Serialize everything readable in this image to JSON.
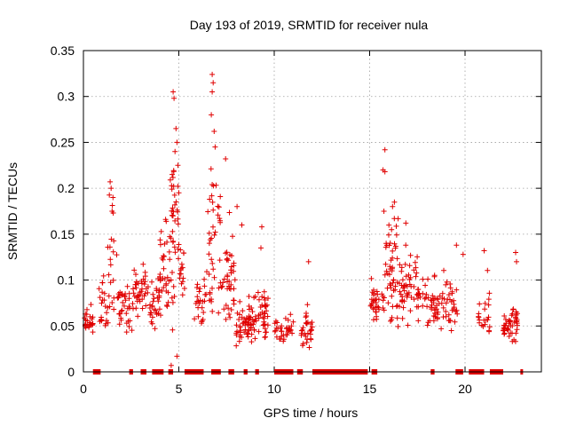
{
  "chart_data": {
    "type": "scatter",
    "title": "Day 193 of 2019, SRMTID for receiver nula",
    "xlabel": "GPS time / hours",
    "ylabel": "SRMTID / TECUs",
    "xlim": [
      0,
      24
    ],
    "ylim": [
      0,
      0.35
    ],
    "x_ticks": [
      0,
      5,
      10,
      15,
      20
    ],
    "x_tick_labels": [
      "0",
      "5",
      "10",
      "15",
      "20"
    ],
    "y_ticks": [
      0,
      0.05,
      0.1,
      0.15,
      0.2,
      0.25,
      0.3,
      0.35
    ],
    "y_tick_labels": [
      "0",
      "0.05",
      "0.1",
      "0.15",
      "0.2",
      "0.25",
      "0.3",
      "0.35"
    ],
    "grid": true,
    "marker": "+",
    "color": "#e00000",
    "series": [
      {
        "name": "SRMTID",
        "clusters": [
          {
            "x0": 0.0,
            "x1": 0.5,
            "mean": 0.055,
            "spread": 0.012,
            "n": 22
          },
          {
            "x0": 0.8,
            "x1": 1.2,
            "mean": 0.07,
            "spread": 0.03,
            "n": 18
          },
          {
            "x0": 1.2,
            "x1": 1.8,
            "mean": 0.1,
            "spread": 0.05,
            "n": 24
          },
          {
            "x0": 1.8,
            "x1": 2.6,
            "mean": 0.065,
            "spread": 0.02,
            "n": 36
          },
          {
            "x0": 2.6,
            "x1": 3.4,
            "mean": 0.085,
            "spread": 0.025,
            "n": 40
          },
          {
            "x0": 3.4,
            "x1": 4.0,
            "mean": 0.075,
            "spread": 0.03,
            "n": 30
          },
          {
            "x0": 4.0,
            "x1": 4.5,
            "mean": 0.11,
            "spread": 0.05,
            "n": 30
          },
          {
            "x0": 4.5,
            "x1": 5.0,
            "mean": 0.15,
            "spread": 0.07,
            "n": 40
          },
          {
            "x0": 5.0,
            "x1": 5.3,
            "mean": 0.11,
            "spread": 0.03,
            "n": 16
          },
          {
            "x0": 5.8,
            "x1": 6.5,
            "mean": 0.07,
            "spread": 0.025,
            "n": 26
          },
          {
            "x0": 6.5,
            "x1": 7.2,
            "mean": 0.14,
            "spread": 0.08,
            "n": 40
          },
          {
            "x0": 7.2,
            "x1": 8.0,
            "mean": 0.1,
            "spread": 0.05,
            "n": 40
          },
          {
            "x0": 8.0,
            "x1": 9.0,
            "mean": 0.05,
            "spread": 0.018,
            "n": 60
          },
          {
            "x0": 9.0,
            "x1": 9.7,
            "mean": 0.065,
            "spread": 0.025,
            "n": 40
          },
          {
            "x0": 10.0,
            "x1": 11.0,
            "mean": 0.045,
            "spread": 0.012,
            "n": 34
          },
          {
            "x0": 11.4,
            "x1": 12.0,
            "mean": 0.045,
            "spread": 0.015,
            "n": 30
          },
          {
            "x0": 15.0,
            "x1": 15.8,
            "mean": 0.075,
            "spread": 0.02,
            "n": 34
          },
          {
            "x0": 15.8,
            "x1": 16.5,
            "mean": 0.11,
            "spread": 0.05,
            "n": 50
          },
          {
            "x0": 16.5,
            "x1": 17.5,
            "mean": 0.09,
            "spread": 0.03,
            "n": 50
          },
          {
            "x0": 17.5,
            "x1": 18.5,
            "mean": 0.075,
            "spread": 0.025,
            "n": 40
          },
          {
            "x0": 18.5,
            "x1": 19.6,
            "mean": 0.07,
            "spread": 0.025,
            "n": 46
          },
          {
            "x0": 20.7,
            "x1": 21.3,
            "mean": 0.06,
            "spread": 0.02,
            "n": 22
          },
          {
            "x0": 22.0,
            "x1": 22.8,
            "mean": 0.05,
            "spread": 0.015,
            "n": 46
          }
        ],
        "peaks": [
          {
            "x": 0.1,
            "y": 0.063
          },
          {
            "x": 0.35,
            "y": 0.06
          },
          {
            "x": 1.4,
            "y": 0.207
          },
          {
            "x": 1.45,
            "y": 0.2
          },
          {
            "x": 1.55,
            "y": 0.19
          },
          {
            "x": 1.5,
            "y": 0.175
          },
          {
            "x": 4.7,
            "y": 0.305
          },
          {
            "x": 4.75,
            "y": 0.298
          },
          {
            "x": 4.85,
            "y": 0.265
          },
          {
            "x": 4.9,
            "y": 0.25
          },
          {
            "x": 4.8,
            "y": 0.24
          },
          {
            "x": 4.95,
            "y": 0.225
          },
          {
            "x": 4.65,
            "y": 0.215
          },
          {
            "x": 5.0,
            "y": 0.195
          },
          {
            "x": 4.6,
            "y": 0.007
          },
          {
            "x": 4.9,
            "y": 0.017
          },
          {
            "x": 6.75,
            "y": 0.324
          },
          {
            "x": 6.8,
            "y": 0.315
          },
          {
            "x": 6.75,
            "y": 0.305
          },
          {
            "x": 6.7,
            "y": 0.28
          },
          {
            "x": 6.85,
            "y": 0.262
          },
          {
            "x": 6.9,
            "y": 0.245
          },
          {
            "x": 7.45,
            "y": 0.232
          },
          {
            "x": 8.05,
            "y": 0.18
          },
          {
            "x": 8.3,
            "y": 0.16
          },
          {
            "x": 9.35,
            "y": 0.158
          },
          {
            "x": 9.3,
            "y": 0.135
          },
          {
            "x": 11.8,
            "y": 0.12
          },
          {
            "x": 15.8,
            "y": 0.242
          },
          {
            "x": 15.7,
            "y": 0.22
          },
          {
            "x": 15.8,
            "y": 0.218
          },
          {
            "x": 16.3,
            "y": 0.185
          },
          {
            "x": 16.2,
            "y": 0.18
          },
          {
            "x": 15.75,
            "y": 0.175
          },
          {
            "x": 16.9,
            "y": 0.162
          },
          {
            "x": 19.55,
            "y": 0.138
          },
          {
            "x": 19.9,
            "y": 0.128
          },
          {
            "x": 21.0,
            "y": 0.132
          },
          {
            "x": 22.65,
            "y": 0.13
          },
          {
            "x": 22.7,
            "y": 0.12
          }
        ],
        "zero_intervals": [
          [
            0.5,
            0.9
          ],
          [
            2.4,
            2.6
          ],
          [
            3.0,
            3.3
          ],
          [
            3.6,
            4.2
          ],
          [
            4.45,
            4.7
          ],
          [
            5.3,
            6.3
          ],
          [
            6.7,
            7.2
          ],
          [
            7.6,
            7.9
          ],
          [
            8.4,
            8.6
          ],
          [
            9.0,
            9.2
          ],
          [
            10.0,
            11.0
          ],
          [
            11.2,
            11.5
          ],
          [
            12.0,
            14.9
          ],
          [
            15.1,
            15.4
          ],
          [
            18.2,
            18.4
          ],
          [
            19.5,
            19.9
          ],
          [
            20.2,
            21.0
          ],
          [
            21.3,
            22.0
          ],
          [
            22.9,
            23.0
          ]
        ]
      }
    ]
  }
}
